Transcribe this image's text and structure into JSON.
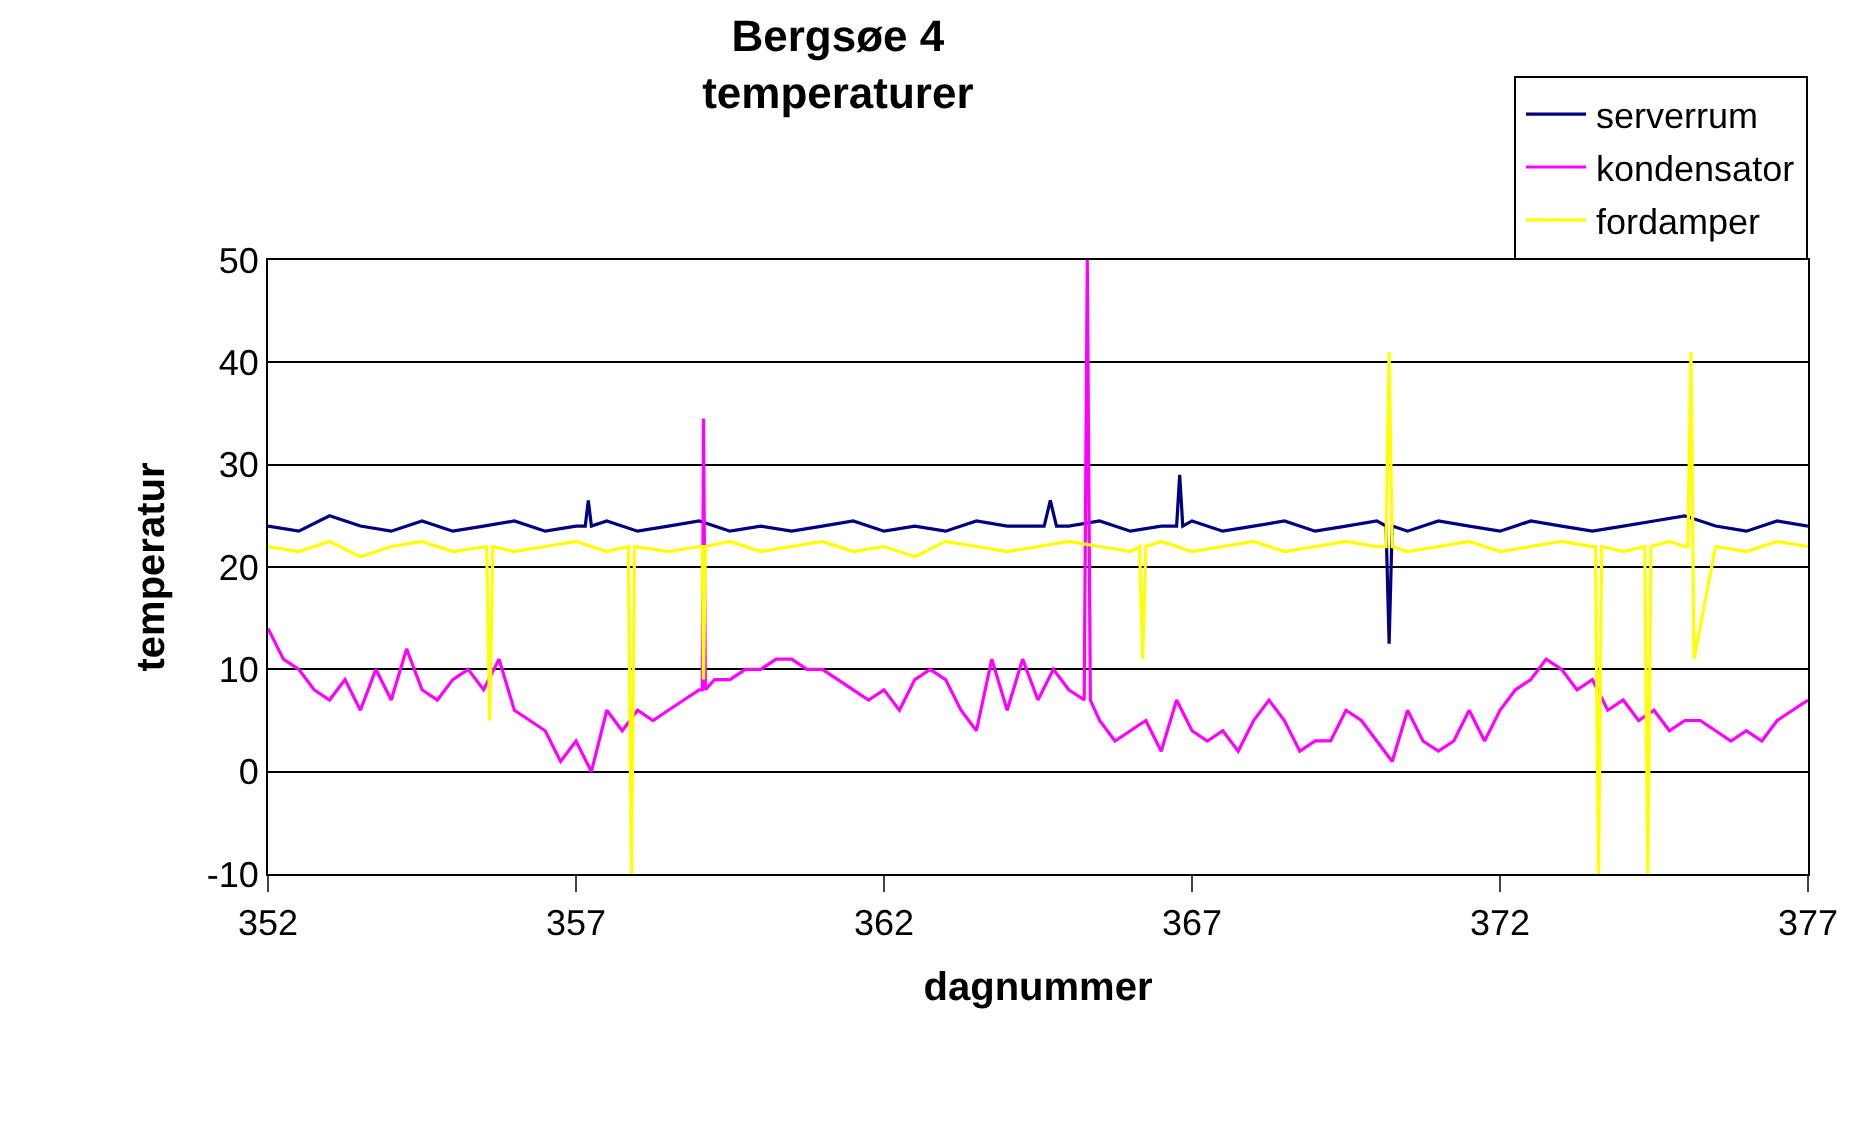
{
  "chart_data": {
    "type": "line",
    "title": "Bergsøe 4\ntemperaturer",
    "xlabel": "dagnummer",
    "ylabel": "temperatur",
    "xlim": [
      352,
      377
    ],
    "xticks": [
      352,
      357,
      362,
      367,
      372,
      377
    ],
    "ylim": [
      -10,
      50
    ],
    "yticks": [
      -10,
      0,
      10,
      20,
      30,
      40,
      50
    ],
    "grid": "y",
    "legend": "top right",
    "marker": "none",
    "line_style": "solid",
    "series": [
      {
        "name": "serverrum",
        "color": "#000080",
        "x": [
          352,
          352.5,
          353,
          353.5,
          354,
          354.5,
          355,
          355.5,
          356,
          356.5,
          357,
          357.15,
          357.2,
          357.25,
          357.5,
          358,
          358.5,
          359,
          359.5,
          360,
          360.5,
          361,
          361.5,
          362,
          362.5,
          363,
          363.5,
          364,
          364.6,
          364.7,
          364.8,
          365,
          365.5,
          366,
          366.5,
          366.75,
          366.8,
          366.85,
          367,
          367.5,
          368,
          368.5,
          369,
          369.5,
          370,
          370.15,
          370.2,
          370.25,
          370.5,
          371,
          371.5,
          372,
          372.5,
          373,
          373.5,
          374,
          374.5,
          375,
          375.5,
          376,
          376.5,
          377
        ],
        "values": [
          24,
          23.5,
          25,
          24,
          23.5,
          24.5,
          23.5,
          24,
          24.5,
          23.5,
          24,
          24,
          26.5,
          24,
          24.5,
          23.5,
          24,
          24.5,
          23.5,
          24,
          23.5,
          24,
          24.5,
          23.5,
          24,
          23.5,
          24.5,
          24,
          24,
          26.5,
          24,
          24,
          24.5,
          23.5,
          24,
          24,
          29,
          24,
          24.5,
          23.5,
          24,
          24.5,
          23.5,
          24,
          24.5,
          24,
          12.5,
          24,
          23.5,
          24.5,
          24,
          23.5,
          24.5,
          24,
          23.5,
          24,
          24.5,
          25,
          24,
          23.5,
          24.5,
          24
        ]
      },
      {
        "name": "kondensator",
        "color": "#ff00ff",
        "x": [
          352,
          352.25,
          352.5,
          352.75,
          353,
          353.25,
          353.5,
          353.75,
          354,
          354.25,
          354.5,
          354.75,
          355,
          355.25,
          355.5,
          355.75,
          356,
          356.25,
          356.5,
          356.75,
          357,
          357.25,
          357.5,
          357.75,
          358,
          358.25,
          358.5,
          358.75,
          359,
          359.05,
          359.07,
          359.1,
          359.25,
          359.5,
          359.75,
          360,
          360.25,
          360.5,
          360.75,
          361,
          361.25,
          361.5,
          361.75,
          362,
          362.25,
          362.5,
          362.75,
          363,
          363.25,
          363.5,
          363.75,
          364,
          364.25,
          364.5,
          364.75,
          365,
          365.25,
          365.3,
          365.35,
          365.5,
          365.75,
          366,
          366.25,
          366.5,
          366.75,
          367,
          367.25,
          367.5,
          367.75,
          368,
          368.25,
          368.5,
          368.75,
          369,
          369.25,
          369.5,
          369.75,
          370,
          370.25,
          370.5,
          370.75,
          371,
          371.25,
          371.5,
          371.75,
          372,
          372.25,
          372.5,
          372.75,
          373,
          373.25,
          373.5,
          373.75,
          374,
          374.25,
          374.5,
          374.75,
          375,
          375.25,
          375.5,
          375.75,
          376,
          376.25,
          376.5,
          376.75,
          377
        ],
        "values": [
          14,
          11,
          10,
          8,
          7,
          9,
          6,
          10,
          7,
          12,
          8,
          7,
          9,
          10,
          8,
          11,
          6,
          5,
          4,
          1,
          3,
          0,
          6,
          4,
          6,
          5,
          6,
          7,
          8,
          8,
          34.5,
          8,
          9,
          9,
          10,
          10,
          11,
          11,
          10,
          10,
          9,
          8,
          7,
          8,
          6,
          9,
          10,
          9,
          6,
          4,
          11,
          6,
          11,
          7,
          10,
          8,
          7,
          50,
          7,
          5,
          3,
          4,
          5,
          2,
          7,
          4,
          3,
          4,
          2,
          5,
          7,
          5,
          2,
          3,
          3,
          6,
          5,
          3,
          1,
          6,
          3,
          2,
          3,
          6,
          3,
          6,
          8,
          9,
          11,
          10,
          8,
          9,
          6,
          7,
          5,
          6,
          4,
          5,
          5,
          4,
          3,
          4,
          3,
          5,
          6,
          7
        ]
      },
      {
        "name": "fordamper",
        "color": "#ffff00",
        "x": [
          352,
          352.5,
          353,
          353.5,
          354,
          354.5,
          355,
          355.55,
          355.6,
          355.65,
          356,
          356.5,
          357,
          357.5,
          357.85,
          357.9,
          357.95,
          358.5,
          359,
          359.05,
          359.07,
          359.1,
          359.5,
          360,
          360.5,
          361,
          361.5,
          362,
          362.5,
          363,
          363.5,
          364,
          364.5,
          365,
          365.5,
          366,
          366.15,
          366.2,
          366.25,
          366.5,
          367,
          367.5,
          368,
          368.5,
          369,
          369.5,
          370,
          370.15,
          370.2,
          370.25,
          370.5,
          371,
          371.5,
          372,
          372.5,
          373,
          373.5,
          373.55,
          373.6,
          373.65,
          374,
          374.35,
          374.4,
          374.45,
          374.75,
          375,
          375.05,
          375.1,
          375.15,
          375.5,
          376,
          376.5,
          377
        ],
        "values": [
          22,
          21.5,
          22.5,
          21,
          22,
          22.5,
          21.5,
          22,
          5,
          22,
          21.5,
          22,
          22.5,
          21.5,
          22,
          -10,
          22,
          21.5,
          22,
          22,
          9,
          22,
          22.5,
          21.5,
          22,
          22.5,
          21.5,
          22,
          21,
          22.5,
          22,
          21.5,
          22,
          22.5,
          22,
          21.5,
          22,
          11,
          22,
          22.5,
          21.5,
          22,
          22.5,
          21.5,
          22,
          22.5,
          22,
          22,
          41,
          22,
          21.5,
          22,
          22.5,
          21.5,
          22,
          22.5,
          22,
          22,
          -10,
          22,
          21.5,
          22,
          -10,
          22,
          22.5,
          22,
          22,
          41,
          11,
          22,
          21.5,
          22.5,
          22
        ]
      }
    ]
  }
}
